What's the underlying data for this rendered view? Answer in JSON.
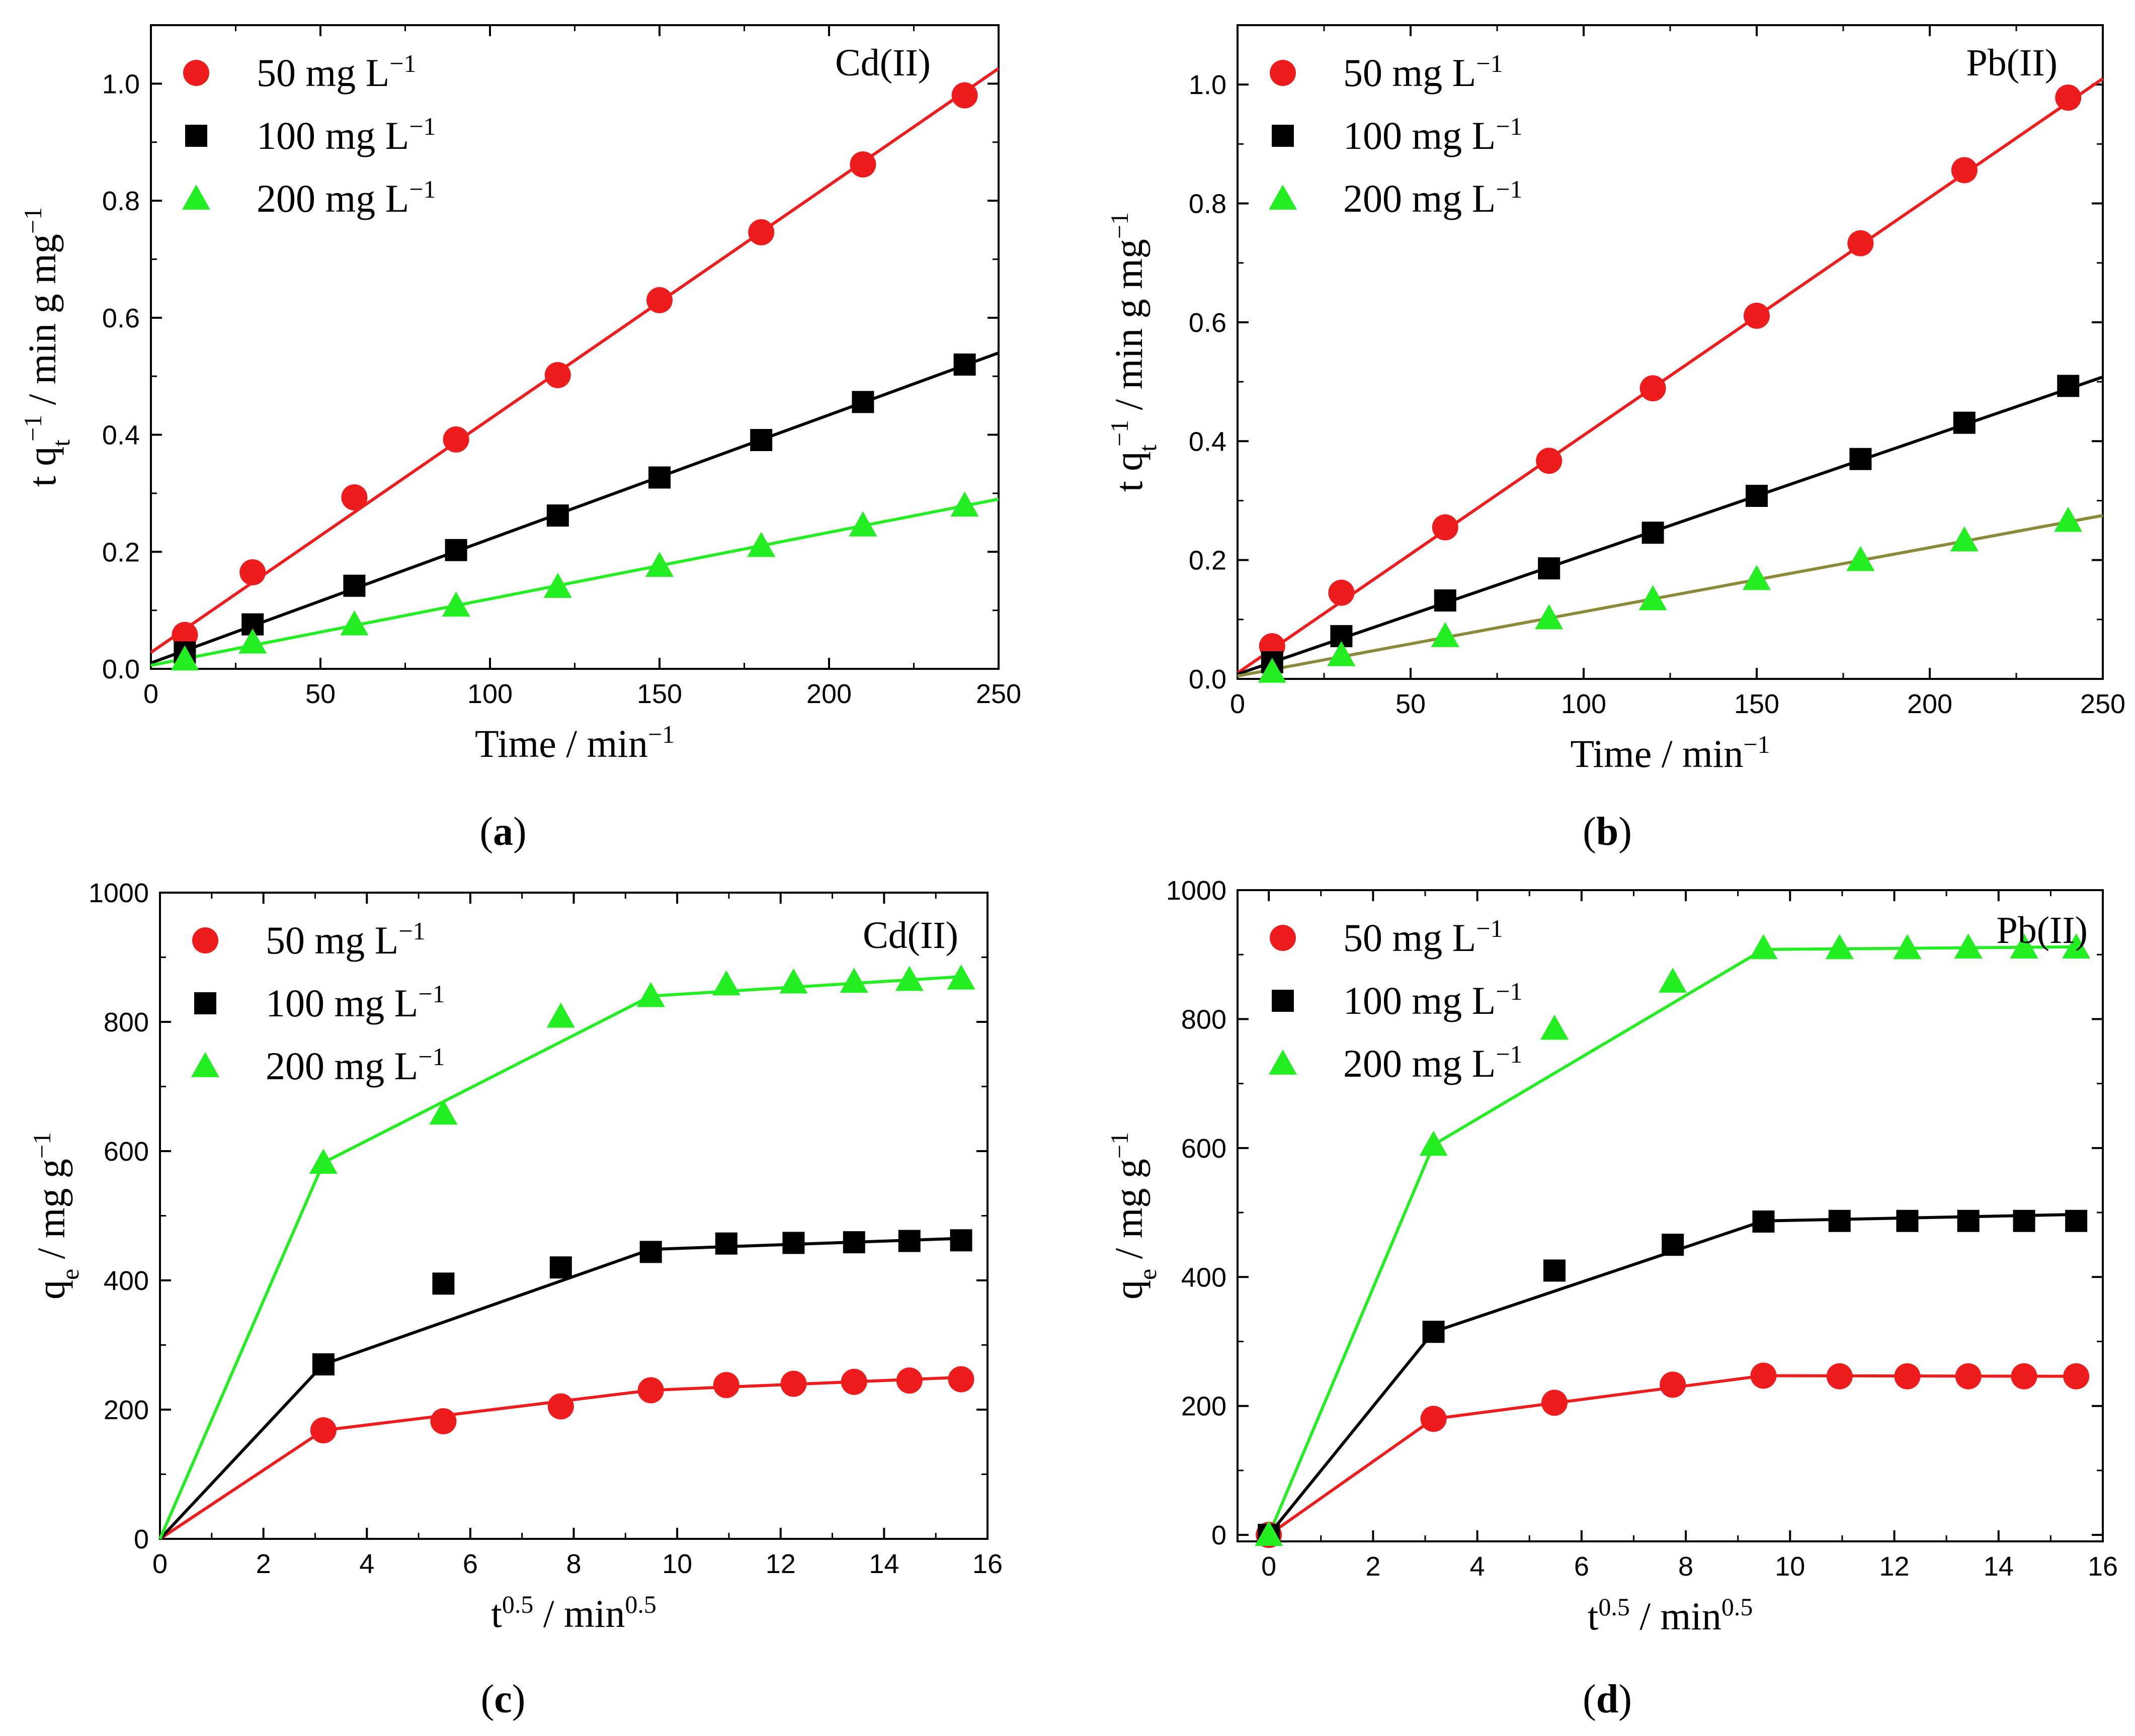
{
  "figure": {
    "unit": "mg L",
    "sup_minus1": "−1",
    "legend_labels": [
      "50  mg L",
      "100 mg L",
      "200 mg L"
    ]
  },
  "colors": {
    "red": "#ee1c1c",
    "black": "#000000",
    "green": "#22ee22",
    "olive": "#8a8a3a"
  },
  "chart_data": [
    {
      "panel": "a",
      "type": "scatter",
      "caption": "(a)",
      "tag": "Cd(II)",
      "xlabel": "Time / min",
      "xlabel_sup": "−1",
      "ylabel": "t q",
      "ylabel_sub": "t",
      "ylabel_sup": "−1",
      "ylabel_rest": " / min g mg",
      "ylabel_rest_sup": "−1",
      "xlim": [
        0,
        250
      ],
      "ylim": [
        0,
        1.1
      ],
      "xticks": [
        0,
        50,
        100,
        150,
        200,
        250
      ],
      "yticks": [
        0.0,
        0.2,
        0.4,
        0.6,
        0.8,
        1.0
      ],
      "ytick_labels": [
        "0.0",
        "0.2",
        "0.4",
        "0.6",
        "0.8",
        "1.0"
      ],
      "series": [
        {
          "name": "50 mg L-1",
          "marker": "circle",
          "color": "red",
          "x": [
            10,
            30,
            60,
            90,
            120,
            150,
            180,
            210,
            240
          ],
          "y": [
            0.058,
            0.165,
            0.293,
            0.392,
            0.502,
            0.63,
            0.746,
            0.862,
            0.98
          ],
          "fit": [
            [
              0,
              0.028
            ],
            [
              250,
              1.026
            ]
          ]
        },
        {
          "name": "100 mg L-1",
          "marker": "square",
          "color": "black",
          "x": [
            10,
            30,
            60,
            90,
            120,
            150,
            180,
            210,
            240
          ],
          "y": [
            0.028,
            0.076,
            0.142,
            0.203,
            0.262,
            0.327,
            0.391,
            0.456,
            0.52
          ],
          "fit": [
            [
              0,
              0.01
            ],
            [
              250,
              0.54
            ]
          ]
        },
        {
          "name": "200 mg L-1",
          "marker": "triangle",
          "color": "green",
          "x": [
            10,
            30,
            60,
            90,
            120,
            150,
            180,
            210,
            240
          ],
          "y": [
            0.016,
            0.045,
            0.076,
            0.108,
            0.14,
            0.176,
            0.21,
            0.245,
            0.279
          ],
          "fit": [
            [
              0,
              0.006
            ],
            [
              250,
              0.29
            ]
          ]
        }
      ]
    },
    {
      "panel": "b",
      "type": "scatter",
      "caption": "(b)",
      "tag": "Pb(II)",
      "xlabel": "Time / min",
      "xlabel_sup": "−1",
      "ylabel": "t q",
      "ylabel_sub": "t",
      "ylabel_sup": "−1",
      "ylabel_rest": " / min g mg",
      "ylabel_rest_sup": "−1",
      "xlim": [
        0,
        250
      ],
      "ylim": [
        0,
        1.1
      ],
      "xticks": [
        0,
        50,
        100,
        150,
        200,
        250
      ],
      "yticks": [
        0.0,
        0.2,
        0.4,
        0.6,
        0.8,
        1.0
      ],
      "ytick_labels": [
        "0.0",
        "0.2",
        "0.4",
        "0.6",
        "0.8",
        "1.0"
      ],
      "series": [
        {
          "name": "50 mg L-1",
          "marker": "circle",
          "color": "red",
          "x": [
            10,
            30,
            60,
            90,
            120,
            150,
            180,
            210,
            240
          ],
          "y": [
            0.055,
            0.145,
            0.255,
            0.367,
            0.489,
            0.611,
            0.733,
            0.856,
            0.978
          ],
          "fit": [
            [
              0,
              0.01
            ],
            [
              250,
              1.01
            ]
          ]
        },
        {
          "name": "100 mg L-1",
          "marker": "square",
          "color": "black",
          "x": [
            10,
            30,
            60,
            90,
            120,
            150,
            180,
            210,
            240
          ],
          "y": [
            0.028,
            0.072,
            0.132,
            0.186,
            0.246,
            0.308,
            0.37,
            0.431,
            0.493
          ],
          "fit": [
            [
              0,
              0.008
            ],
            [
              250,
              0.508
            ]
          ]
        },
        {
          "name": "200 mg L-1",
          "marker": "triangle",
          "color": "green",
          "x": [
            10,
            30,
            60,
            90,
            120,
            150,
            180,
            210,
            240
          ],
          "y": [
            0.012,
            0.04,
            0.072,
            0.102,
            0.134,
            0.168,
            0.2,
            0.233,
            0.266
          ],
          "fit": [
            [
              0,
              0.005
            ],
            [
              250,
              0.275
            ]
          ],
          "fit_color": "olive"
        }
      ]
    },
    {
      "panel": "c",
      "type": "scatter",
      "caption": "(c)",
      "tag": "Cd(II)",
      "xlabel": "t",
      "xlabel_sup": "0.5",
      "xlabel_rest": " / min",
      "xlabel_rest_sup": "0.5",
      "ylabel": "q",
      "ylabel_sub": "e",
      "ylabel_rest": " / mg g",
      "ylabel_rest_sup": "−1",
      "xlim": [
        0,
        16
      ],
      "ylim": [
        0,
        1000
      ],
      "xticks": [
        0,
        2,
        4,
        6,
        8,
        10,
        12,
        14,
        16
      ],
      "yticks": [
        0,
        200,
        400,
        600,
        800,
        1000
      ],
      "ytick_labels": [
        "0",
        "200",
        "400",
        "600",
        "800",
        "1000"
      ],
      "series": [
        {
          "name": "50 mg L-1",
          "marker": "circle",
          "color": "red",
          "x": [
            3.16,
            5.48,
            7.75,
            9.49,
            10.95,
            12.25,
            13.42,
            14.49,
            15.49
          ],
          "y": [
            168,
            182,
            205,
            230,
            238,
            240,
            243,
            245,
            247
          ],
          "fit": [
            [
              0,
              0
            ],
            [
              3.16,
              168
            ],
            [
              9.49,
              230
            ],
            [
              15.49,
              250
            ]
          ]
        },
        {
          "name": "100 mg L-1",
          "marker": "square",
          "color": "black",
          "x": [
            3.16,
            5.48,
            7.75,
            9.49,
            10.95,
            12.25,
            13.42,
            14.49,
            15.49
          ],
          "y": [
            270,
            395,
            420,
            444,
            457,
            458,
            459,
            461,
            462
          ],
          "fit": [
            [
              0,
              0
            ],
            [
              3.16,
              270
            ],
            [
              9.49,
              448
            ],
            [
              15.49,
              465
            ]
          ]
        },
        {
          "name": "200 mg L-1",
          "marker": "triangle",
          "color": "green",
          "x": [
            3.16,
            5.48,
            7.75,
            9.49,
            10.95,
            12.25,
            13.42,
            14.49,
            15.49
          ],
          "y": [
            582,
            658,
            808,
            840,
            858,
            861,
            862,
            865,
            867
          ],
          "fit": [
            [
              0,
              0
            ],
            [
              3.16,
              582
            ],
            [
              9.49,
              840
            ],
            [
              15.49,
              870
            ]
          ]
        }
      ]
    },
    {
      "panel": "d",
      "type": "scatter",
      "caption": "(d)",
      "tag": "Pb(II)",
      "xlabel": "t",
      "xlabel_sup": "0.5",
      "xlabel_rest": " / min",
      "xlabel_rest_sup": "0.5",
      "ylabel": "q",
      "ylabel_sub": "e",
      "ylabel_rest": " / mg g",
      "ylabel_rest_sup": "−1",
      "xlim": [
        -0.6,
        16
      ],
      "ylim": [
        -10,
        1000
      ],
      "xticks": [
        0,
        2,
        4,
        6,
        8,
        10,
        12,
        14,
        16
      ],
      "yticks": [
        0,
        200,
        400,
        600,
        800,
        1000
      ],
      "ytick_labels": [
        "0",
        "200",
        "400",
        "600",
        "800",
        "1000"
      ],
      "series": [
        {
          "name": "50 mg L-1",
          "marker": "circle",
          "color": "red",
          "x": [
            0,
            3.16,
            5.48,
            7.75,
            9.49,
            10.95,
            12.25,
            13.42,
            14.49,
            15.49
          ],
          "y": [
            0,
            180,
            205,
            233,
            247,
            246,
            246,
            246,
            246,
            246
          ],
          "fit": [
            [
              0,
              0
            ],
            [
              3.16,
              180
            ],
            [
              9.49,
              247
            ],
            [
              15.49,
              246
            ]
          ]
        },
        {
          "name": "100 mg L-1",
          "marker": "square",
          "color": "black",
          "x": [
            0,
            3.16,
            5.48,
            7.75,
            9.49,
            10.95,
            12.25,
            13.42,
            14.49,
            15.49
          ],
          "y": [
            0,
            315,
            410,
            450,
            486,
            487,
            487,
            487,
            487,
            487
          ],
          "fit": [
            [
              0,
              0
            ],
            [
              3.16,
              315
            ],
            [
              9.49,
              487
            ],
            [
              15.49,
              497
            ]
          ]
        },
        {
          "name": "200 mg L-1",
          "marker": "triangle",
          "color": "green",
          "x": [
            0,
            3.16,
            5.48,
            7.75,
            9.49,
            10.95,
            12.25,
            13.42,
            14.49,
            15.49
          ],
          "y": [
            0,
            605,
            785,
            858,
            910,
            910,
            910,
            911,
            911,
            911
          ],
          "fit": [
            [
              0,
              0
            ],
            [
              3.16,
              605
            ],
            [
              9.49,
              908
            ],
            [
              15.49,
              912
            ]
          ]
        }
      ]
    }
  ]
}
